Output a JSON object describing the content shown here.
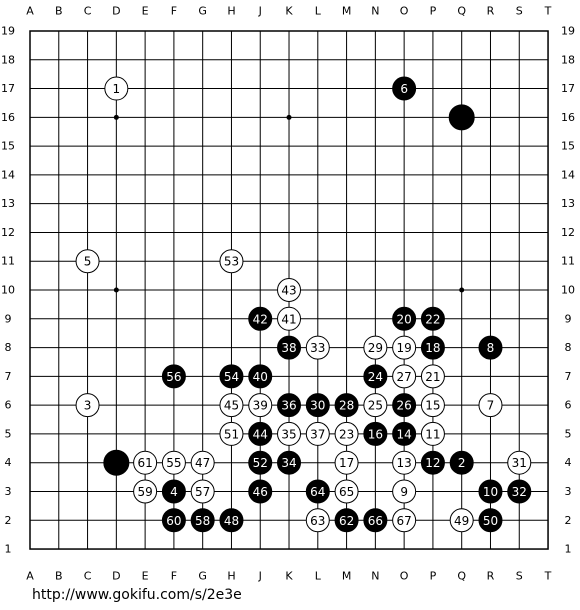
{
  "board": {
    "columns": [
      "A",
      "B",
      "C",
      "D",
      "E",
      "F",
      "G",
      "H",
      "J",
      "K",
      "L",
      "M",
      "N",
      "O",
      "P",
      "Q",
      "R",
      "S",
      "T"
    ],
    "rows": [
      19,
      18,
      17,
      16,
      15,
      14,
      13,
      12,
      11,
      10,
      9,
      8,
      7,
      6,
      5,
      4,
      3,
      2,
      1
    ],
    "stones": [
      {
        "pos": "D17",
        "color": "white",
        "label": "1"
      },
      {
        "pos": "O17",
        "color": "black",
        "label": "6"
      },
      {
        "pos": "Q16",
        "color": "black"
      },
      {
        "pos": "C11",
        "color": "white",
        "label": "5"
      },
      {
        "pos": "H11",
        "color": "white",
        "label": "53"
      },
      {
        "pos": "K10",
        "color": "white",
        "label": "43"
      },
      {
        "pos": "J9",
        "color": "black",
        "label": "42"
      },
      {
        "pos": "K9",
        "color": "white",
        "label": "41"
      },
      {
        "pos": "O9",
        "color": "black",
        "label": "20"
      },
      {
        "pos": "P9",
        "color": "black",
        "label": "22"
      },
      {
        "pos": "K8",
        "color": "black",
        "label": "38"
      },
      {
        "pos": "L8",
        "color": "white",
        "label": "33"
      },
      {
        "pos": "N8",
        "color": "white",
        "label": "29"
      },
      {
        "pos": "O8",
        "color": "white",
        "label": "19"
      },
      {
        "pos": "P8",
        "color": "black",
        "label": "18"
      },
      {
        "pos": "R8",
        "color": "black",
        "label": "8"
      },
      {
        "pos": "F7",
        "color": "black",
        "label": "56"
      },
      {
        "pos": "H7",
        "color": "black",
        "label": "54"
      },
      {
        "pos": "J7",
        "color": "black",
        "label": "40"
      },
      {
        "pos": "N7",
        "color": "black",
        "label": "24"
      },
      {
        "pos": "O7",
        "color": "white",
        "label": "27"
      },
      {
        "pos": "P7",
        "color": "white",
        "label": "21"
      },
      {
        "pos": "C6",
        "color": "white",
        "label": "3"
      },
      {
        "pos": "H6",
        "color": "white",
        "label": "45"
      },
      {
        "pos": "J6",
        "color": "white",
        "label": "39"
      },
      {
        "pos": "K6",
        "color": "black",
        "label": "36"
      },
      {
        "pos": "L6",
        "color": "black",
        "label": "30"
      },
      {
        "pos": "M6",
        "color": "black",
        "label": "28"
      },
      {
        "pos": "N6",
        "color": "white",
        "label": "25"
      },
      {
        "pos": "O6",
        "color": "black",
        "label": "26"
      },
      {
        "pos": "P6",
        "color": "white",
        "label": "15"
      },
      {
        "pos": "R6",
        "color": "white",
        "label": "7"
      },
      {
        "pos": "H5",
        "color": "white",
        "label": "51"
      },
      {
        "pos": "J5",
        "color": "black",
        "label": "44"
      },
      {
        "pos": "K5",
        "color": "white",
        "label": "35"
      },
      {
        "pos": "L5",
        "color": "white",
        "label": "37"
      },
      {
        "pos": "M5",
        "color": "white",
        "label": "23"
      },
      {
        "pos": "N5",
        "color": "black",
        "label": "16"
      },
      {
        "pos": "O5",
        "color": "black",
        "label": "14"
      },
      {
        "pos": "P5",
        "color": "white",
        "label": "11"
      },
      {
        "pos": "D4",
        "color": "black"
      },
      {
        "pos": "E4",
        "color": "white",
        "label": "61"
      },
      {
        "pos": "F4",
        "color": "white",
        "label": "55"
      },
      {
        "pos": "G4",
        "color": "white",
        "label": "47"
      },
      {
        "pos": "J4",
        "color": "black",
        "label": "52"
      },
      {
        "pos": "K4",
        "color": "black",
        "label": "34"
      },
      {
        "pos": "M4",
        "color": "white",
        "label": "17"
      },
      {
        "pos": "O4",
        "color": "white",
        "label": "13"
      },
      {
        "pos": "P4",
        "color": "black",
        "label": "12"
      },
      {
        "pos": "Q4",
        "color": "black",
        "label": "2"
      },
      {
        "pos": "S4",
        "color": "white",
        "label": "31"
      },
      {
        "pos": "E3",
        "color": "white",
        "label": "59"
      },
      {
        "pos": "F3",
        "color": "black",
        "label": "4"
      },
      {
        "pos": "G3",
        "color": "white",
        "label": "57"
      },
      {
        "pos": "J3",
        "color": "black",
        "label": "46"
      },
      {
        "pos": "L3",
        "color": "black",
        "label": "64"
      },
      {
        "pos": "M3",
        "color": "white",
        "label": "65"
      },
      {
        "pos": "O3",
        "color": "white",
        "label": "9"
      },
      {
        "pos": "R3",
        "color": "black",
        "label": "10"
      },
      {
        "pos": "S3",
        "color": "black",
        "label": "32"
      },
      {
        "pos": "F2",
        "color": "black",
        "label": "60"
      },
      {
        "pos": "G2",
        "color": "black",
        "label": "58"
      },
      {
        "pos": "H2",
        "color": "black",
        "label": "48"
      },
      {
        "pos": "L2",
        "color": "white",
        "label": "63"
      },
      {
        "pos": "M2",
        "color": "black",
        "label": "62"
      },
      {
        "pos": "N2",
        "color": "black",
        "label": "66"
      },
      {
        "pos": "O2",
        "color": "white",
        "label": "67"
      },
      {
        "pos": "Q2",
        "color": "white",
        "label": "49"
      },
      {
        "pos": "R2",
        "color": "black",
        "label": "50"
      }
    ]
  },
  "footer": {
    "url": "http://www.gokifu.com/s/2e3e"
  }
}
